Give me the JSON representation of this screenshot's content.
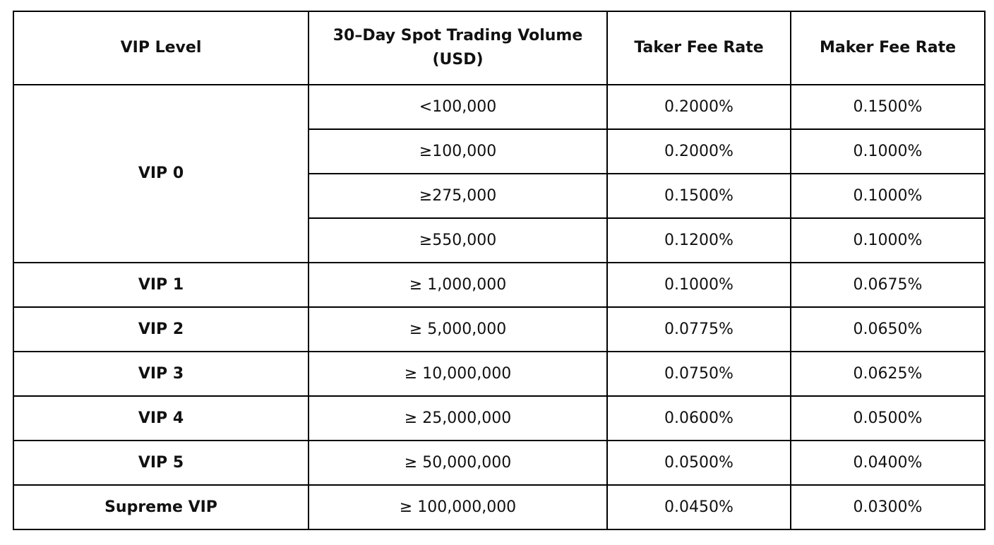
{
  "headers": {
    "vip_level": "VIP Level",
    "volume_line1": "30–Day Spot Trading Volume",
    "volume_line2": "(USD)",
    "taker": "Taker Fee Rate",
    "maker": "Maker Fee Rate"
  },
  "rows": [
    {
      "level": "VIP 0",
      "volume": "<100,000",
      "taker": "0.2000%",
      "maker": "0.1500%"
    },
    {
      "level": "",
      "volume": "≥100,000",
      "taker": "0.2000%",
      "maker": "0.1000%"
    },
    {
      "level": "",
      "volume": "≥275,000",
      "taker": "0.1500%",
      "maker": "0.1000%"
    },
    {
      "level": "",
      "volume": "≥550,000",
      "taker": "0.1200%",
      "maker": "0.1000%"
    },
    {
      "level": "VIP 1",
      "volume": "≥ 1,000,000",
      "taker": "0.1000%",
      "maker": "0.0675%"
    },
    {
      "level": "VIP 2",
      "volume": "≥ 5,000,000",
      "taker": "0.0775%",
      "maker": "0.0650%"
    },
    {
      "level": "VIP 3",
      "volume": "≥ 10,000,000",
      "taker": "0.0750%",
      "maker": "0.0625%"
    },
    {
      "level": "VIP 4",
      "volume": "≥ 25,000,000",
      "taker": "0.0600%",
      "maker": "0.0500%"
    },
    {
      "level": "VIP 5",
      "volume": "≥ 50,000,000",
      "taker": "0.0500%",
      "maker": "0.0400%"
    },
    {
      "level": "Supreme VIP",
      "volume": "≥ 100,000,000",
      "taker": "0.0450%",
      "maker": "0.0300%"
    }
  ]
}
